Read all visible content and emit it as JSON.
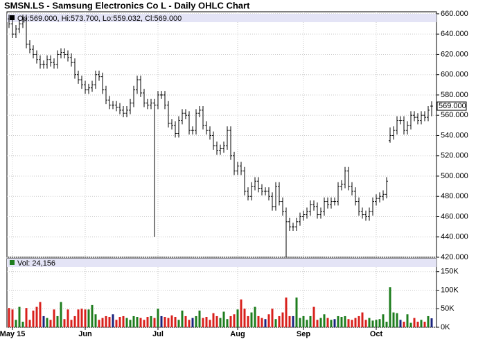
{
  "chart_data": {
    "type": "ohlc",
    "title": "SMSN.LS - Samsung Electronics Co L - Daily OHLC Chart",
    "legend_text": "Op:569.000, Hi:573.700, Lo:559.032, Cl:569.000",
    "last_label": "569.000",
    "color": "#000000",
    "grid": true,
    "categories": [
      null,
      "May 15",
      null,
      null,
      null,
      null,
      null,
      null,
      null,
      null,
      null,
      null,
      null,
      null,
      null,
      null,
      null,
      null,
      null,
      null,
      null,
      null,
      "Jun",
      null,
      null,
      null,
      null,
      null,
      null,
      null,
      null,
      null,
      null,
      null,
      null,
      null,
      null,
      null,
      null,
      null,
      null,
      null,
      null,
      "Jul",
      null,
      null,
      null,
      null,
      null,
      null,
      null,
      null,
      null,
      null,
      null,
      null,
      null,
      null,
      null,
      null,
      null,
      null,
      null,
      null,
      null,
      null,
      "Aug",
      null,
      null,
      null,
      null,
      null,
      null,
      null,
      null,
      null,
      null,
      null,
      null,
      null,
      null,
      null,
      null,
      null,
      null,
      "Sep",
      null,
      null,
      null,
      null,
      null,
      null,
      null,
      null,
      null,
      null,
      null,
      null,
      null,
      null,
      null,
      null,
      null,
      null,
      null,
      null,
      "Oct",
      null,
      null,
      null,
      null,
      null,
      null,
      null,
      null,
      null,
      null,
      null,
      null,
      null,
      null,
      null,
      null
    ],
    "open": [
      655,
      650,
      640,
      645,
      650,
      655,
      630,
      625,
      620,
      615,
      610,
      610,
      615,
      612,
      610,
      620,
      622,
      620,
      617,
      612,
      600,
      595,
      590,
      585,
      587,
      590,
      600,
      598,
      585,
      575,
      570,
      570,
      568,
      565,
      562,
      565,
      572,
      585,
      595,
      582,
      572,
      570,
      572,
      570,
      580,
      580,
      570,
      552,
      550,
      542,
      555,
      562,
      560,
      545,
      545,
      562,
      565,
      550,
      545,
      540,
      530,
      525,
      527,
      530,
      545,
      520,
      505,
      510,
      505,
      485,
      480,
      490,
      495,
      488,
      485,
      485,
      480,
      470,
      490,
      475,
      465,
      455,
      450,
      450,
      455,
      460,
      462,
      465,
      472,
      470,
      462,
      465,
      475,
      472,
      475,
      475,
      490,
      492,
      505,
      490,
      485,
      475,
      465,
      462,
      460,
      465,
      475,
      478,
      480,
      482,
      535,
      540,
      545,
      555,
      555,
      545,
      550,
      560,
      558,
      555,
      560,
      558,
      569
    ],
    "high": [
      659,
      654,
      649,
      654,
      659,
      659,
      634,
      629,
      624,
      619,
      614,
      619,
      619,
      616,
      624,
      626,
      626,
      624,
      621,
      616,
      604,
      599,
      594,
      591,
      594,
      604,
      604,
      602,
      589,
      579,
      574,
      574,
      572,
      569,
      569,
      576,
      589,
      599,
      599,
      586,
      576,
      576,
      576,
      584,
      584,
      584,
      574,
      556,
      554,
      559,
      566,
      566,
      564,
      549,
      566,
      569,
      569,
      554,
      549,
      544,
      534,
      531,
      534,
      549,
      549,
      524,
      514,
      514,
      509,
      489,
      494,
      499,
      499,
      492,
      489,
      489,
      484,
      494,
      494,
      479,
      469,
      459,
      454,
      459,
      464,
      466,
      469,
      476,
      476,
      474,
      469,
      479,
      479,
      479,
      479,
      494,
      496,
      509,
      509,
      494,
      489,
      479,
      469,
      466,
      469,
      479,
      482,
      484,
      486,
      499,
      548,
      549,
      559,
      559,
      559,
      554,
      564,
      564,
      562,
      564,
      564,
      569,
      573.7
    ],
    "low": [
      646,
      636,
      636,
      641,
      646,
      626,
      621,
      616,
      611,
      606,
      606,
      606,
      608,
      606,
      606,
      616,
      616,
      613,
      608,
      596,
      591,
      586,
      581,
      581,
      583,
      586,
      594,
      581,
      571,
      566,
      566,
      564,
      561,
      558,
      558,
      561,
      568,
      581,
      578,
      568,
      566,
      566,
      440,
      566,
      576,
      566,
      548,
      546,
      538,
      538,
      551,
      556,
      541,
      541,
      541,
      558,
      546,
      541,
      536,
      526,
      521,
      521,
      523,
      526,
      516,
      501,
      501,
      501,
      481,
      476,
      476,
      486,
      484,
      481,
      481,
      476,
      466,
      466,
      471,
      461,
      420,
      446,
      446,
      446,
      451,
      456,
      458,
      461,
      466,
      458,
      458,
      461,
      468,
      468,
      471,
      471,
      486,
      488,
      486,
      481,
      471,
      461,
      458,
      456,
      456,
      461,
      471,
      474,
      476,
      478,
      533,
      536,
      541,
      551,
      541,
      541,
      546,
      554,
      551,
      551,
      554,
      554,
      559.032
    ],
    "close": [
      650,
      640,
      645,
      650,
      655,
      630,
      625,
      620,
      615,
      610,
      610,
      615,
      612,
      610,
      620,
      622,
      620,
      617,
      612,
      600,
      595,
      590,
      585,
      587,
      590,
      600,
      598,
      585,
      575,
      570,
      570,
      568,
      565,
      562,
      565,
      572,
      585,
      595,
      582,
      572,
      570,
      572,
      570,
      580,
      580,
      570,
      552,
      550,
      542,
      555,
      562,
      560,
      545,
      545,
      562,
      565,
      550,
      545,
      540,
      530,
      525,
      527,
      530,
      545,
      520,
      505,
      510,
      505,
      485,
      480,
      490,
      495,
      488,
      485,
      485,
      480,
      470,
      490,
      475,
      465,
      455,
      450,
      450,
      455,
      460,
      462,
      465,
      472,
      470,
      462,
      465,
      475,
      472,
      475,
      475,
      490,
      492,
      505,
      490,
      485,
      475,
      465,
      462,
      460,
      465,
      475,
      478,
      480,
      482,
      495,
      540,
      545,
      555,
      555,
      545,
      550,
      560,
      558,
      555,
      560,
      558,
      565,
      569
    ],
    "ylim": [
      420,
      662
    ],
    "yticks": [
      {
        "value": 420,
        "label": "420.000"
      },
      {
        "value": 440,
        "label": "440.000"
      },
      {
        "value": 460,
        "label": "460.000"
      },
      {
        "value": 480,
        "label": "480.000"
      },
      {
        "value": 500,
        "label": "500.000"
      },
      {
        "value": 520,
        "label": "520.000"
      },
      {
        "value": 540,
        "label": "540.000"
      },
      {
        "value": 560,
        "label": "560.000"
      },
      {
        "value": 580,
        "label": "580.000"
      },
      {
        "value": 600,
        "label": "600.000"
      },
      {
        "value": 620,
        "label": "620.000"
      },
      {
        "value": 640,
        "label": "640.000"
      },
      {
        "value": 660,
        "label": "660.000"
      }
    ],
    "volume": {
      "legend_text": "Vol: 24,156",
      "up_color": "#1e7d1e",
      "down_color": "#d8201c",
      "flat_color": "#1a237e",
      "values": [
        52000,
        48000,
        20000,
        55000,
        15000,
        52000,
        20000,
        45000,
        55000,
        68000,
        30000,
        25000,
        20000,
        48000,
        30000,
        68000,
        22000,
        48000,
        20000,
        30000,
        48000,
        50000,
        48000,
        48000,
        60000,
        35000,
        20000,
        25000,
        30000,
        28000,
        35000,
        20000,
        28000,
        30000,
        25000,
        20000,
        30000,
        28000,
        25000,
        20000,
        28000,
        30000,
        25000,
        50000,
        30000,
        28000,
        25000,
        32000,
        28000,
        20000,
        45000,
        30000,
        20000,
        25000,
        30000,
        45000,
        25000,
        28000,
        20000,
        38000,
        30000,
        25000,
        42000,
        22000,
        30000,
        35000,
        48000,
        75000,
        50000,
        30000,
        40000,
        55000,
        30000,
        25000,
        22000,
        35000,
        50000,
        22000,
        30000,
        40000,
        80000,
        30000,
        30000,
        80000,
        25000,
        30000,
        20000,
        30000,
        55000,
        20000,
        25000,
        35000,
        25000,
        20000,
        22000,
        30000,
        28000,
        30000,
        22000,
        20000,
        25000,
        30000,
        40000,
        20000,
        25000,
        18000,
        20000,
        22000,
        35000,
        15000,
        108000,
        40000,
        38000,
        20000,
        15000,
        35000,
        12000,
        25000,
        15000,
        20000,
        15000,
        30000,
        24156
      ],
      "ylim": [
        0,
        185000
      ],
      "yticks": [
        {
          "value": 0,
          "label": "0K"
        },
        {
          "value": 50000,
          "label": "50K"
        },
        {
          "value": 100000,
          "label": "100K"
        },
        {
          "value": 150000,
          "label": "150K"
        }
      ]
    }
  }
}
